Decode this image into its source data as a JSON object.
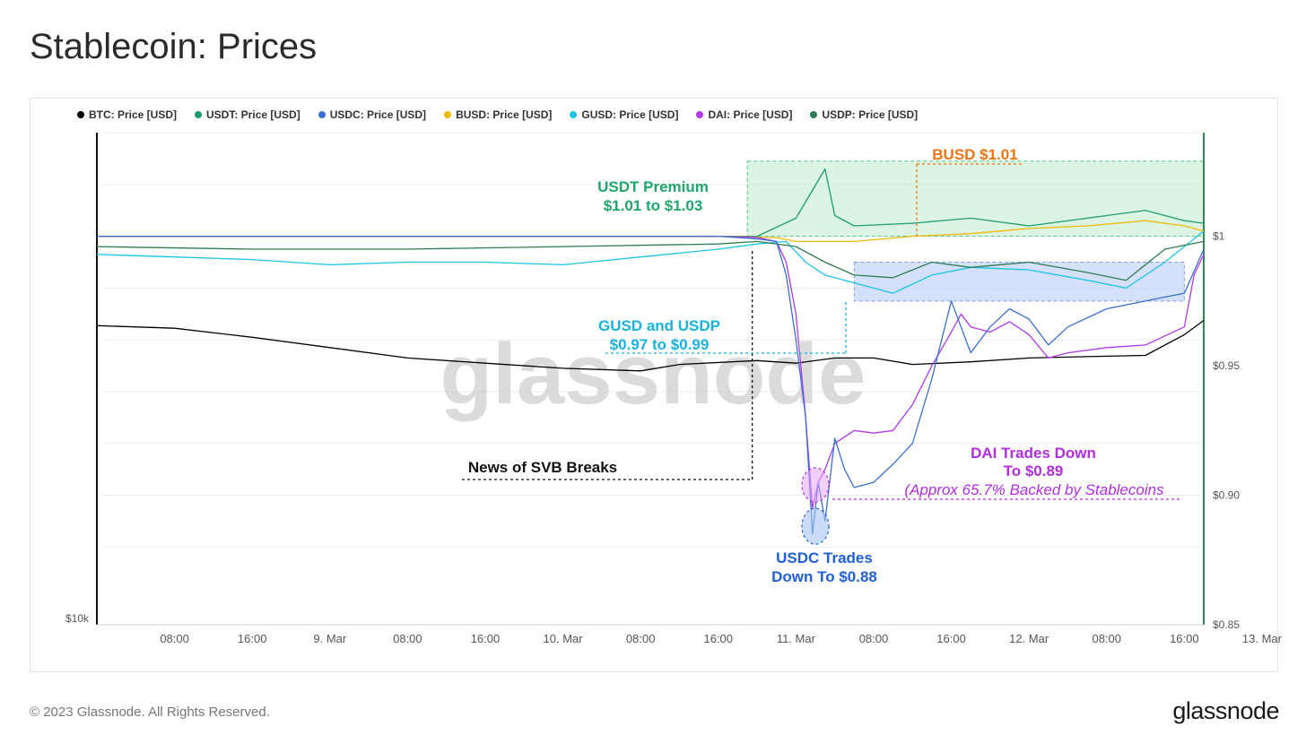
{
  "page": {
    "title": "Stablecoin: Prices",
    "copyright": "© 2023 Glassnode. All Rights Reserved.",
    "logo_text": "glassnode",
    "watermark": "glassnode"
  },
  "chart_data": {
    "type": "line",
    "title": "Stablecoin: Prices",
    "x_tick_labels": [
      "08:00",
      "16:00",
      "9. Mar",
      "08:00",
      "16:00",
      "10. Mar",
      "08:00",
      "16:00",
      "11. Mar",
      "08:00",
      "16:00",
      "12. Mar",
      "08:00",
      "16:00",
      "13. Mar"
    ],
    "x_range_hours": [
      0,
      114
    ],
    "y_right": {
      "ticks": [
        "$1",
        "$0.95",
        "$0.90",
        "$0.85"
      ],
      "tick_values": [
        1.0,
        0.95,
        0.9,
        0.85
      ],
      "range": [
        0.85,
        1.04
      ]
    },
    "y_left": {
      "ticks": [
        "$10k"
      ],
      "scale": "log"
    },
    "grid": true,
    "legend_position": "top-left",
    "series": [
      {
        "name": "BTC: Price [USD]",
        "color": "#000000",
        "axis": "left",
        "points": [
          [
            0,
            0.9655
          ],
          [
            8,
            0.9645
          ],
          [
            16,
            0.961
          ],
          [
            24,
            0.957
          ],
          [
            32,
            0.953
          ],
          [
            40,
            0.951
          ],
          [
            48,
            0.949
          ],
          [
            56,
            0.948
          ],
          [
            60,
            0.9505
          ],
          [
            68,
            0.952
          ],
          [
            72,
            0.951
          ],
          [
            76,
            0.953
          ],
          [
            80,
            0.953
          ],
          [
            84,
            0.9505
          ],
          [
            90,
            0.9515
          ],
          [
            96,
            0.953
          ],
          [
            102,
            0.9535
          ],
          [
            108,
            0.954
          ],
          [
            112,
            0.962
          ],
          [
            114,
            0.9675
          ]
        ]
      },
      {
        "name": "USDT: Price [USD]",
        "color": "#1e9d6f",
        "axis": "right",
        "points": [
          [
            0,
            1.0
          ],
          [
            20,
            1.0
          ],
          [
            40,
            1.0
          ],
          [
            64,
            1.0
          ],
          [
            68,
            1.0
          ],
          [
            72,
            1.007
          ],
          [
            75,
            1.026
          ],
          [
            76,
            1.008
          ],
          [
            78,
            1.004
          ],
          [
            84,
            1.005
          ],
          [
            90,
            1.007
          ],
          [
            96,
            1.004
          ],
          [
            102,
            1.007
          ],
          [
            108,
            1.01
          ],
          [
            112,
            1.006
          ],
          [
            114,
            1.005
          ]
        ]
      },
      {
        "name": "USDC: Price [USD]",
        "color": "#3b6fd0",
        "axis": "right",
        "points": [
          [
            0,
            1.0
          ],
          [
            48,
            1.0
          ],
          [
            64,
            1.0
          ],
          [
            68,
            0.999
          ],
          [
            70,
            0.998
          ],
          [
            71,
            0.985
          ],
          [
            72,
            0.96
          ],
          [
            73,
            0.93
          ],
          [
            73.7,
            0.885
          ],
          [
            74.3,
            0.905
          ],
          [
            75,
            0.89
          ],
          [
            76,
            0.922
          ],
          [
            77,
            0.91
          ],
          [
            78,
            0.903
          ],
          [
            80,
            0.905
          ],
          [
            82,
            0.912
          ],
          [
            84,
            0.92
          ],
          [
            86,
            0.945
          ],
          [
            88,
            0.975
          ],
          [
            89,
            0.965
          ],
          [
            90,
            0.955
          ],
          [
            92,
            0.965
          ],
          [
            94,
            0.972
          ],
          [
            96,
            0.968
          ],
          [
            98,
            0.958
          ],
          [
            100,
            0.965
          ],
          [
            104,
            0.972
          ],
          [
            108,
            0.975
          ],
          [
            112,
            0.978
          ],
          [
            114,
            0.995
          ]
        ]
      },
      {
        "name": "BUSD: Price [USD]",
        "color": "#f0b90b",
        "axis": "right",
        "points": [
          [
            0,
            1.0
          ],
          [
            64,
            1.0
          ],
          [
            70,
            0.9995
          ],
          [
            72,
            0.998
          ],
          [
            78,
            0.998
          ],
          [
            84,
            1.0
          ],
          [
            90,
            1.001
          ],
          [
            96,
            1.003
          ],
          [
            102,
            1.004
          ],
          [
            108,
            1.006
          ],
          [
            112,
            1.004
          ],
          [
            114,
            1.002
          ]
        ]
      },
      {
        "name": "GUSD: Price [USD]",
        "color": "#1cc5e8",
        "axis": "right",
        "points": [
          [
            0,
            0.993
          ],
          [
            8,
            0.992
          ],
          [
            16,
            0.991
          ],
          [
            24,
            0.989
          ],
          [
            32,
            0.99
          ],
          [
            40,
            0.99
          ],
          [
            48,
            0.989
          ],
          [
            56,
            0.992
          ],
          [
            64,
            0.995
          ],
          [
            68,
            0.997
          ],
          [
            71,
            0.998
          ],
          [
            73,
            0.99
          ],
          [
            75,
            0.985
          ],
          [
            78,
            0.982
          ],
          [
            82,
            0.978
          ],
          [
            86,
            0.985
          ],
          [
            90,
            0.988
          ],
          [
            96,
            0.987
          ],
          [
            102,
            0.983
          ],
          [
            106,
            0.98
          ],
          [
            110,
            0.99
          ],
          [
            114,
            1.002
          ]
        ]
      },
      {
        "name": "DAI: Price [USD]",
        "color": "#b13ae8",
        "axis": "right",
        "points": [
          [
            0,
            1.0
          ],
          [
            48,
            1.0
          ],
          [
            64,
            1.0
          ],
          [
            68,
            0.9995
          ],
          [
            70,
            0.998
          ],
          [
            71,
            0.99
          ],
          [
            72,
            0.97
          ],
          [
            73,
            0.93
          ],
          [
            73.7,
            0.895
          ],
          [
            74.3,
            0.905
          ],
          [
            75,
            0.91
          ],
          [
            76,
            0.92
          ],
          [
            78,
            0.925
          ],
          [
            80,
            0.924
          ],
          [
            82,
            0.925
          ],
          [
            84,
            0.935
          ],
          [
            86,
            0.95
          ],
          [
            88,
            0.963
          ],
          [
            89,
            0.97
          ],
          [
            90,
            0.965
          ],
          [
            92,
            0.963
          ],
          [
            94,
            0.967
          ],
          [
            96,
            0.962
          ],
          [
            98,
            0.953
          ],
          [
            100,
            0.955
          ],
          [
            104,
            0.957
          ],
          [
            108,
            0.958
          ],
          [
            112,
            0.965
          ],
          [
            113,
            0.985
          ],
          [
            114,
            0.993
          ]
        ]
      },
      {
        "name": "USDP: Price [USD]",
        "color": "#2e7d52",
        "axis": "right",
        "points": [
          [
            0,
            0.996
          ],
          [
            16,
            0.995
          ],
          [
            32,
            0.995
          ],
          [
            48,
            0.996
          ],
          [
            64,
            0.997
          ],
          [
            68,
            0.998
          ],
          [
            72,
            0.996
          ],
          [
            75,
            0.99
          ],
          [
            78,
            0.985
          ],
          [
            82,
            0.984
          ],
          [
            86,
            0.99
          ],
          [
            90,
            0.988
          ],
          [
            96,
            0.99
          ],
          [
            102,
            0.986
          ],
          [
            106,
            0.983
          ],
          [
            110,
            0.995
          ],
          [
            114,
            0.998
          ]
        ]
      }
    ],
    "annotations": [
      {
        "id": "usdt",
        "lines": [
          "USDT Premium",
          "$1.01 to $1.03"
        ],
        "color": "#1fa76c"
      },
      {
        "id": "busd",
        "lines": [
          "BUSD $1.01"
        ],
        "color": "#ee7312"
      },
      {
        "id": "gusd",
        "lines": [
          "GUSD and USDP",
          "$0.97 to $0.99"
        ],
        "color": "#17b3e0"
      },
      {
        "id": "svb",
        "lines": [
          "News of SVB Breaks"
        ],
        "color": "#111111"
      },
      {
        "id": "dai",
        "lines": [
          "DAI Trades Down",
          "To $0.89"
        ],
        "color": "#b02ee0"
      },
      {
        "id": "dai_backing",
        "lines": [
          "(Approx 65.7% Backed by Stablecoins"
        ],
        "color": "#b02ee0"
      },
      {
        "id": "usdc",
        "lines": [
          "USDC Trades",
          "Down To $0.88"
        ],
        "color": "#1f5fd8"
      }
    ]
  }
}
